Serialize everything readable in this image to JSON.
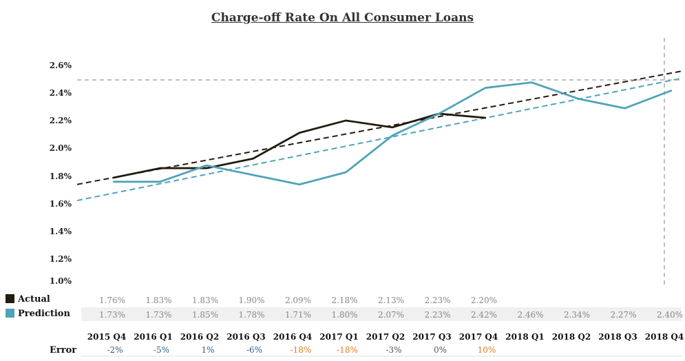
{
  "chart_data": {
    "type": "line",
    "title": "Charge-off Rate On All Consumer Loans",
    "categories": [
      "2015 Q4",
      "2016 Q1",
      "2016 Q2",
      "2016 Q3",
      "2016 Q4",
      "2017 Q1",
      "2017 Q2",
      "2017 Q3",
      "2017 Q4",
      "2018 Q1",
      "2018 Q2",
      "2018 Q3",
      "2018 Q4"
    ],
    "y_ticks": [
      "1.0%",
      "1.2%",
      "1.4%",
      "1.6%",
      "1.8%",
      "2.0%",
      "2.2%",
      "2.4%",
      "2.6%"
    ],
    "ylim": [
      1.0,
      2.6
    ],
    "series": [
      {
        "name": "Actual",
        "color": "#231b0e",
        "values": [
          1.76,
          1.83,
          1.83,
          1.9,
          2.09,
          2.18,
          2.13,
          2.23,
          2.2,
          null,
          null,
          null,
          null
        ],
        "labels": [
          "1.76%",
          "1.83%",
          "1.83%",
          "1.90%",
          "2.09%",
          "2.18%",
          "2.13%",
          "2.23%",
          "2.20%",
          "",
          "",
          "",
          ""
        ]
      },
      {
        "name": "Prediction",
        "color": "#4fa3b8",
        "values": [
          1.73,
          1.73,
          1.85,
          1.78,
          1.71,
          1.8,
          2.07,
          2.23,
          2.42,
          2.46,
          2.34,
          2.27,
          2.4
        ],
        "labels": [
          "1.73%",
          "1.73%",
          "1.85%",
          "1.78%",
          "1.71%",
          "1.80%",
          "2.07%",
          "2.23%",
          "2.42%",
          "2.46%",
          "2.34%",
          "2.27%",
          "2.40%"
        ]
      }
    ],
    "error_label": "Error",
    "errors": [
      "-2%",
      "-5%",
      "1%",
      "-6%",
      "-18%",
      "-18%",
      "-3%",
      "0%",
      "10%",
      "",
      "",
      "",
      ""
    ],
    "error_colors": [
      "#2f5f86",
      "#2f5f86",
      "#2f5f86",
      "#2f5f86",
      "#e07b1a",
      "#e07b1a",
      "#555555",
      "#555555",
      "#e07b1a",
      "",
      "",
      "",
      ""
    ],
    "grid": false,
    "legend": "left"
  }
}
